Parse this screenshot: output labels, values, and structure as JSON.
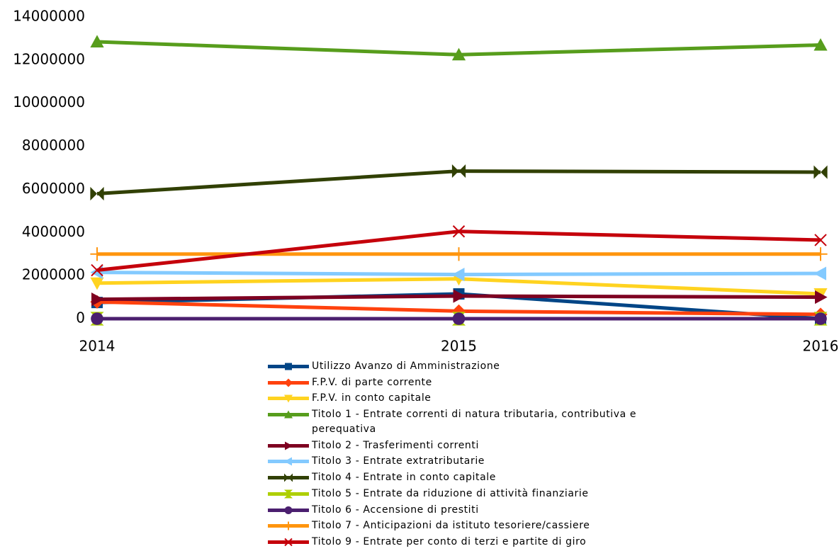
{
  "chart_data": {
    "type": "line",
    "categories": [
      "2014",
      "2015",
      "2016"
    ],
    "ylim": [
      0,
      14000000
    ],
    "yticks": [
      0,
      2000000,
      4000000,
      6000000,
      8000000,
      10000000,
      12000000,
      14000000
    ],
    "series": [
      {
        "name": "Utilizzo Avanzo di Amministrazione",
        "color": "#004586",
        "marker": "square",
        "values": [
          750000,
          1150000,
          0
        ]
      },
      {
        "name": "F.P.V. di parte corrente",
        "color": "#ff420e",
        "marker": "diamond",
        "values": [
          780000,
          350000,
          200000
        ]
      },
      {
        "name": "F.P.V. in conto capitale",
        "color": "#ffd320",
        "marker": "triangle-down",
        "values": [
          1650000,
          1850000,
          1150000
        ]
      },
      {
        "name": "Titolo 1 - Entrate correnti di natura tributaria, contributiva e perequativa",
        "color": "#579d1c",
        "marker": "triangle-up",
        "values": [
          12850000,
          12250000,
          12700000
        ]
      },
      {
        "name": "Titolo 2 - Trasferimenti correnti",
        "color": "#7e0021",
        "marker": "triangle-right",
        "values": [
          900000,
          1050000,
          1000000
        ]
      },
      {
        "name": "Titolo 3 - Entrate extratributarie",
        "color": "#83caff",
        "marker": "triangle-left",
        "values": [
          2150000,
          2050000,
          2100000
        ]
      },
      {
        "name": "Titolo 4 - Entrate in conto capitale",
        "color": "#314004",
        "marker": "bowtie",
        "values": [
          5800000,
          6850000,
          6800000
        ]
      },
      {
        "name": "Titolo 5 - Entrate da riduzione di attività finanziarie",
        "color": "#aecf00",
        "marker": "hourglass",
        "values": [
          0,
          0,
          0
        ]
      },
      {
        "name": "Titolo 6 - Accensione di prestiti",
        "color": "#4b1f6f",
        "marker": "circle",
        "values": [
          0,
          0,
          0
        ]
      },
      {
        "name": "Titolo 7 - Anticipazioni da istituto tesoriere/cassiere",
        "color": "#ff950e",
        "marker": "star",
        "values": [
          3000000,
          3000000,
          3000000
        ]
      },
      {
        "name": "Titolo 9 - Entrate per conto di terzi e partite di giro",
        "color": "#c5000b",
        "marker": "cross",
        "values": [
          2250000,
          4050000,
          3650000
        ]
      }
    ]
  }
}
